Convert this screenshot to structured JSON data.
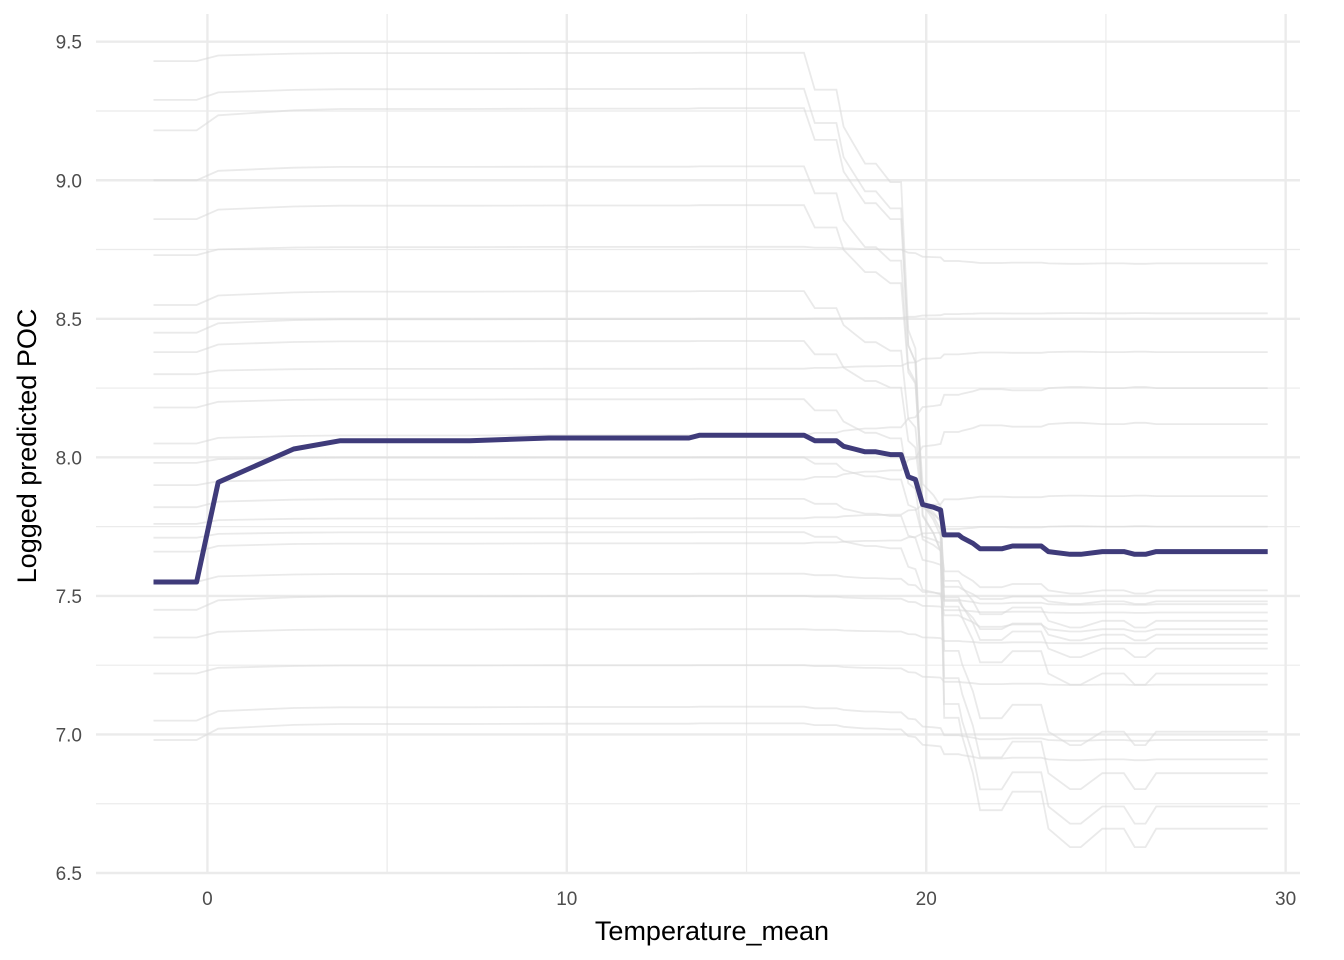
{
  "chart_data": {
    "type": "line",
    "title": "",
    "xlabel": "Temperature_mean",
    "ylabel": "Logged predicted POC",
    "xlim": [
      -3.1,
      30.4
    ],
    "ylim": [
      6.5,
      9.6
    ],
    "x_ticks": [
      0,
      10,
      20,
      30
    ],
    "x_tick_labels": [
      "0",
      "10",
      "20",
      "30"
    ],
    "y_ticks": [
      6.5,
      7.0,
      7.5,
      8.0,
      8.5,
      9.0,
      9.5
    ],
    "y_tick_labels": [
      "6.5",
      "7.0",
      "7.5",
      "8.0",
      "8.5",
      "9.0",
      "9.5"
    ],
    "grid": true,
    "colors": {
      "average": "#3f3b7a",
      "ice": "#d9d9d9",
      "grid": "#ebebeb"
    },
    "average_series": {
      "x": [
        -1.5,
        -0.3,
        0.3,
        2.4,
        3.7,
        7.3,
        9.5,
        13.4,
        13.7,
        16.6,
        16.9,
        17.5,
        17.7,
        18.0,
        18.3,
        18.6,
        19.0,
        19.3,
        19.5,
        19.7,
        19.9,
        20.2,
        20.4,
        20.5,
        20.9,
        21.0,
        21.3,
        21.5,
        22.1,
        22.4,
        23.2,
        23.4,
        24.0,
        24.3,
        24.9,
        25.2,
        25.5,
        25.8,
        26.1,
        26.4,
        29.5
      ],
      "y": [
        7.55,
        7.55,
        7.91,
        8.03,
        8.06,
        8.06,
        8.07,
        8.07,
        8.08,
        8.08,
        8.06,
        8.06,
        8.04,
        8.03,
        8.02,
        8.02,
        8.01,
        8.01,
        7.93,
        7.92,
        7.83,
        7.82,
        7.81,
        7.72,
        7.72,
        7.71,
        7.69,
        7.67,
        7.67,
        7.68,
        7.68,
        7.66,
        7.65,
        7.65,
        7.66,
        7.66,
        7.66,
        7.65,
        7.65,
        7.66,
        7.66
      ]
    },
    "ice_series": [
      {
        "start": 9.43,
        "peak": 9.46,
        "end": 6.66
      },
      {
        "start": 9.29,
        "peak": 9.33,
        "end": 6.74
      },
      {
        "start": 9.18,
        "peak": 9.26,
        "end": 6.86
      },
      {
        "start": 9.0,
        "peak": 9.05,
        "end": 7.01
      },
      {
        "start": 8.86,
        "peak": 8.91,
        "end": 7.22
      },
      {
        "start": 8.73,
        "peak": 8.76,
        "end": 8.7
      },
      {
        "start": 8.55,
        "peak": 8.6,
        "end": 7.31
      },
      {
        "start": 8.45,
        "peak": 8.5,
        "end": 8.52
      },
      {
        "start": 8.38,
        "peak": 8.42,
        "end": 7.41
      },
      {
        "start": 8.3,
        "peak": 8.32,
        "end": 8.38
      },
      {
        "start": 8.18,
        "peak": 8.21,
        "end": 7.36
      },
      {
        "start": 8.05,
        "peak": 8.08,
        "end": 8.25
      },
      {
        "start": 7.98,
        "peak": 8.0,
        "end": 7.52
      },
      {
        "start": 7.9,
        "peak": 7.92,
        "end": 8.12
      },
      {
        "start": 7.82,
        "peak": 7.85,
        "end": 7.48
      },
      {
        "start": 7.76,
        "peak": 7.78,
        "end": 7.86
      },
      {
        "start": 7.71,
        "peak": 7.73,
        "end": 7.38
      },
      {
        "start": 7.66,
        "peak": 7.69,
        "end": 7.75
      },
      {
        "start": 7.55,
        "peak": 7.58,
        "end": 7.47
      },
      {
        "start": 7.45,
        "peak": 7.5,
        "end": 7.44
      },
      {
        "start": 7.35,
        "peak": 7.38,
        "end": 7.33
      },
      {
        "start": 7.22,
        "peak": 7.25,
        "end": 7.18
      },
      {
        "start": 7.05,
        "peak": 7.1,
        "end": 6.98
      },
      {
        "start": 6.98,
        "peak": 7.04,
        "end": 6.91
      }
    ]
  }
}
